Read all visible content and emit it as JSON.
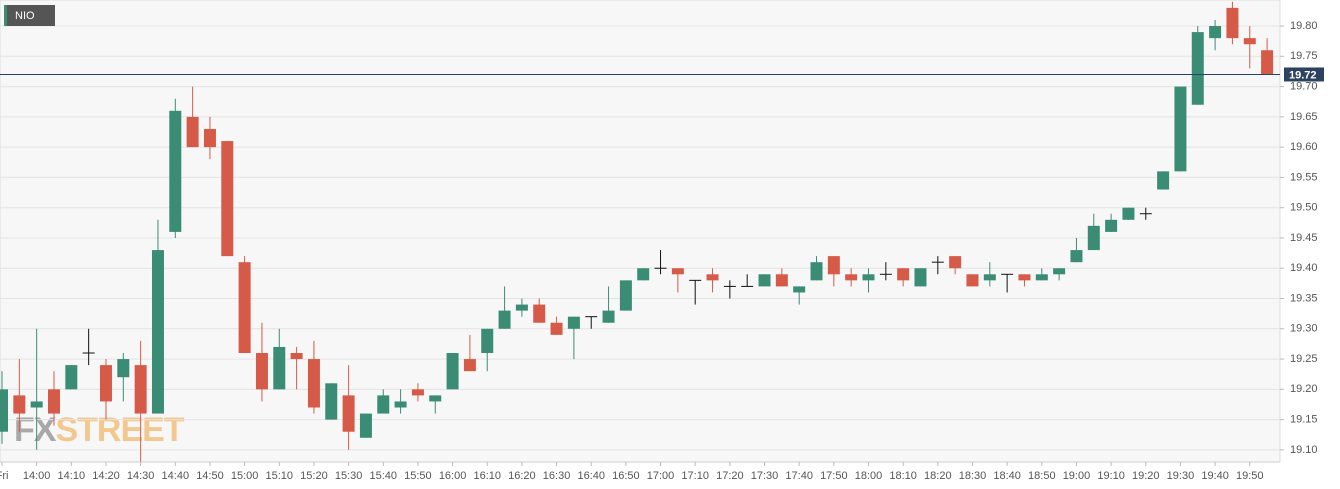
{
  "chart_data": {
    "type": "candlestick",
    "legend": "NIO",
    "watermark": [
      "FX",
      "STREET"
    ],
    "colors": {
      "up": "#3b8c75",
      "down": "#d65a48",
      "flat": "#111111",
      "last_price": "#2d4260"
    },
    "last_price": 19.72,
    "categories": [
      "Fri",
      null,
      "14:00",
      null,
      "14:10",
      null,
      "14:20",
      null,
      "14:30",
      null,
      "14:40",
      null,
      "14:50",
      null,
      "15:00",
      null,
      "15:10",
      null,
      "15:20",
      null,
      "15:30",
      null,
      "15:40",
      null,
      "15:50",
      null,
      "16:00",
      null,
      "16:10",
      null,
      "16:20",
      null,
      "16:30",
      null,
      "16:40",
      null,
      "16:50",
      null,
      "17:00",
      null,
      "17:10",
      null,
      "17:20",
      null,
      "17:30",
      null,
      "17:40",
      null,
      "17:50",
      null,
      "18:00",
      null,
      "18:10",
      null,
      "18:20",
      null,
      "18:30",
      null,
      "18:40",
      null,
      "18:50",
      null,
      "19:00",
      null,
      "19:10",
      null,
      "19:20",
      null,
      "19:30",
      null,
      "19:40",
      null,
      "19:50",
      null
    ],
    "open": [
      19.13,
      19.19,
      19.17,
      19.2,
      19.2,
      19.26,
      19.24,
      19.22,
      19.24,
      19.16,
      19.46,
      19.65,
      19.63,
      19.61,
      19.41,
      19.26,
      19.2,
      19.26,
      19.25,
      19.15,
      19.19,
      19.12,
      19.16,
      19.17,
      19.2,
      19.18,
      19.2,
      19.25,
      19.26,
      19.3,
      19.33,
      19.34,
      19.31,
      19.3,
      19.32,
      19.31,
      19.33,
      19.38,
      19.4,
      19.4,
      19.38,
      19.39,
      19.37,
      19.37,
      19.37,
      19.39,
      19.36,
      19.38,
      19.42,
      19.39,
      19.38,
      19.39,
      19.4,
      19.37,
      19.41,
      19.42,
      19.39,
      19.38,
      19.39,
      19.39,
      19.38,
      19.39,
      19.41,
      19.43,
      19.46,
      19.48,
      19.49,
      19.53,
      19.56,
      19.67,
      19.78,
      19.83,
      19.78,
      19.76
    ],
    "high": [
      19.23,
      19.25,
      19.3,
      19.23,
      19.24,
      19.3,
      19.25,
      19.26,
      19.28,
      19.48,
      19.68,
      19.7,
      19.65,
      19.61,
      19.42,
      19.31,
      19.3,
      19.27,
      19.28,
      19.21,
      19.24,
      19.16,
      19.2,
      19.2,
      19.21,
      19.19,
      19.26,
      19.29,
      19.3,
      19.37,
      19.35,
      19.35,
      19.32,
      19.32,
      19.32,
      19.37,
      19.38,
      19.4,
      19.43,
      19.4,
      19.38,
      19.4,
      19.38,
      19.39,
      19.39,
      19.4,
      19.37,
      19.42,
      19.42,
      19.4,
      19.4,
      19.41,
      19.4,
      19.4,
      19.42,
      19.42,
      19.39,
      19.41,
      19.39,
      19.39,
      19.4,
      19.4,
      19.45,
      19.49,
      19.49,
      19.5,
      19.5,
      19.56,
      19.7,
      19.8,
      19.81,
      19.84,
      19.8,
      19.78
    ],
    "low": [
      19.11,
      19.13,
      19.1,
      19.14,
      19.2,
      19.24,
      19.15,
      19.18,
      19.08,
      19.16,
      19.45,
      19.6,
      19.58,
      19.42,
      19.26,
      19.18,
      19.2,
      19.2,
      19.16,
      19.15,
      19.1,
      19.12,
      19.16,
      19.16,
      19.18,
      19.16,
      19.2,
      19.23,
      19.23,
      19.3,
      19.32,
      19.31,
      19.29,
      19.25,
      19.3,
      19.31,
      19.33,
      19.38,
      19.39,
      19.36,
      19.34,
      19.36,
      19.35,
      19.37,
      19.37,
      19.37,
      19.34,
      19.38,
      19.37,
      19.37,
      19.36,
      19.38,
      19.37,
      19.37,
      19.39,
      19.39,
      19.37,
      19.37,
      19.36,
      19.37,
      19.38,
      19.38,
      19.41,
      19.43,
      19.46,
      19.48,
      19.48,
      19.53,
      19.56,
      19.67,
      19.76,
      19.77,
      19.73,
      19.72
    ],
    "close": [
      19.2,
      19.16,
      19.18,
      19.16,
      19.24,
      19.26,
      19.18,
      19.25,
      19.16,
      19.43,
      19.66,
      19.6,
      19.6,
      19.42,
      19.26,
      19.2,
      19.27,
      19.25,
      19.17,
      19.21,
      19.13,
      19.16,
      19.19,
      19.18,
      19.19,
      19.19,
      19.26,
      19.23,
      19.3,
      19.33,
      19.34,
      19.31,
      19.29,
      19.32,
      19.32,
      19.33,
      19.38,
      19.4,
      19.4,
      19.39,
      19.38,
      19.38,
      19.37,
      19.37,
      19.39,
      19.37,
      19.37,
      19.41,
      19.39,
      19.38,
      19.39,
      19.39,
      19.38,
      19.4,
      19.41,
      19.4,
      19.37,
      19.39,
      19.39,
      19.38,
      19.39,
      19.4,
      19.43,
      19.47,
      19.48,
      19.5,
      19.49,
      19.56,
      19.7,
      19.79,
      19.8,
      19.78,
      19.77,
      19.72
    ],
    "ylim": [
      19.08,
      19.843
    ],
    "yticks": [
      {
        "value": 19.1,
        "label": "19.10"
      },
      19.15,
      {
        "value": 19.2,
        "label": "19.20"
      },
      19.25,
      {
        "value": 19.3,
        "label": "19.30"
      },
      19.35,
      {
        "value": 19.4,
        "label": "19.40"
      },
      19.45,
      {
        "value": 19.5,
        "label": "19.50"
      },
      19.55,
      {
        "value": 19.6,
        "label": "19.60"
      },
      19.65,
      {
        "value": 19.7,
        "label": "19.70"
      },
      19.75,
      {
        "value": 19.8,
        "label": "19.80"
      }
    ],
    "grid": true
  }
}
